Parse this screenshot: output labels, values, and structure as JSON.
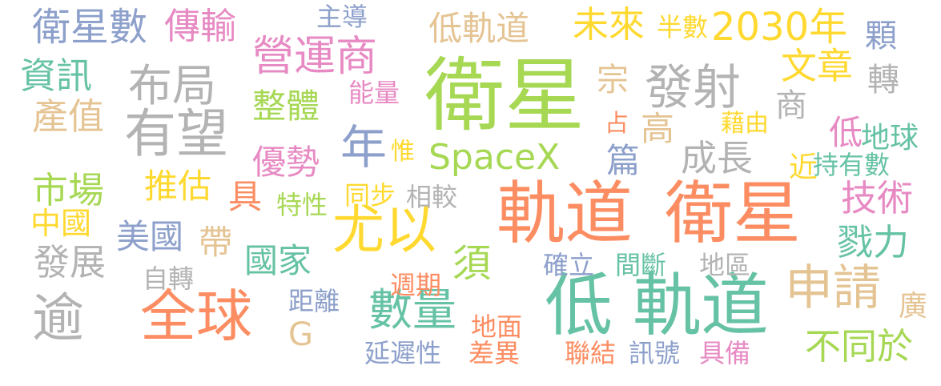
{
  "words": [
    {
      "text": "衛星",
      "color": "#a6d854"
    },
    {
      "text": "軌道",
      "color": "#fc8d62"
    },
    {
      "text": "衛星",
      "color": "#fc8d62"
    },
    {
      "text": "低",
      "color": "#66c2a5"
    },
    {
      "text": "軌道",
      "color": "#66c2a5"
    },
    {
      "text": "有望",
      "color": "#b3b3b3"
    },
    {
      "text": "尤以",
      "color": "#ffd92f"
    },
    {
      "text": "全球",
      "color": "#fc8d62"
    },
    {
      "text": "申請",
      "color": "#e5c494"
    },
    {
      "text": "發射",
      "color": "#b3b3b3"
    },
    {
      "text": "營運商",
      "color": "#e78ac3"
    },
    {
      "text": "布局",
      "color": "#b3b3b3"
    },
    {
      "text": "數量",
      "color": "#66c2a5"
    },
    {
      "text": "2030年",
      "color": "#ffd92f"
    },
    {
      "text": "SpaceX",
      "color": "#a6d854"
    },
    {
      "text": "衛星數",
      "color": "#8da0cb"
    },
    {
      "text": "逾",
      "color": "#b3b3b3"
    },
    {
      "text": "年",
      "color": "#8da0cb"
    },
    {
      "text": "未來",
      "color": "#ffd92f"
    },
    {
      "text": "低軌道",
      "color": "#e5c494"
    },
    {
      "text": "傳輸",
      "color": "#e78ac3"
    },
    {
      "text": "資訊",
      "color": "#66c2a5"
    },
    {
      "text": "產值",
      "color": "#e5c494"
    },
    {
      "text": "整體",
      "color": "#a6d854"
    },
    {
      "text": "優勢",
      "color": "#e78ac3"
    },
    {
      "text": "推估",
      "color": "#ffd92f"
    },
    {
      "text": "市場",
      "color": "#a6d854"
    },
    {
      "text": "中國",
      "color": "#ffd92f"
    },
    {
      "text": "美國",
      "color": "#8da0cb"
    },
    {
      "text": "發展",
      "color": "#b3b3b3"
    },
    {
      "text": "國家",
      "color": "#66c2a5"
    },
    {
      "text": "須",
      "color": "#a6d854"
    },
    {
      "text": "帶",
      "color": "#e5c494"
    },
    {
      "text": "具",
      "color": "#fc8d62"
    },
    {
      "text": "文章",
      "color": "#ffd92f"
    },
    {
      "text": "成長",
      "color": "#b3b3b3"
    },
    {
      "text": "高",
      "color": "#e5c494"
    },
    {
      "text": "篇",
      "color": "#8da0cb"
    },
    {
      "text": "技術",
      "color": "#e78ac3"
    },
    {
      "text": "戮力",
      "color": "#66c2a5"
    },
    {
      "text": "不同於",
      "color": "#a6d854"
    },
    {
      "text": "宗",
      "color": "#e5c494"
    },
    {
      "text": "顆",
      "color": "#8da0cb"
    },
    {
      "text": "轉",
      "color": "#b3b3b3"
    },
    {
      "text": "商",
      "color": "#b3b3b3"
    },
    {
      "text": "低",
      "color": "#e78ac3"
    },
    {
      "text": "地球",
      "color": "#66c2a5"
    },
    {
      "text": "近",
      "color": "#ffd92f"
    },
    {
      "text": "持有數",
      "color": "#66c2a5"
    },
    {
      "text": "廣",
      "color": "#e5c494"
    },
    {
      "text": "主導",
      "color": "#8da0cb"
    },
    {
      "text": "半數",
      "color": "#ffd92f"
    },
    {
      "text": "能量",
      "color": "#e78ac3"
    },
    {
      "text": "惟",
      "color": "#ffd92f"
    },
    {
      "text": "占",
      "color": "#fc8d62"
    },
    {
      "text": "藉由",
      "color": "#ffd92f"
    },
    {
      "text": "特性",
      "color": "#a6d854"
    },
    {
      "text": "同步",
      "color": "#ffd92f"
    },
    {
      "text": "相較",
      "color": "#b3b3b3"
    },
    {
      "text": "自轉",
      "color": "#b3b3b3"
    },
    {
      "text": "距離",
      "color": "#8da0cb"
    },
    {
      "text": "G",
      "color": "#e5c494"
    },
    {
      "text": "週期",
      "color": "#fc8d62"
    },
    {
      "text": "確立",
      "color": "#8da0cb"
    },
    {
      "text": "間斷",
      "color": "#66c2a5"
    },
    {
      "text": "地區",
      "color": "#b3b3b3"
    },
    {
      "text": "地面",
      "color": "#fc8d62"
    },
    {
      "text": "延遲性",
      "color": "#8da0cb"
    },
    {
      "text": "差異",
      "color": "#fc8d62"
    },
    {
      "text": "聯結",
      "color": "#fc8d62"
    },
    {
      "text": "訊號",
      "color": "#8da0cb"
    },
    {
      "text": "具備",
      "color": "#e78ac3"
    }
  ]
}
